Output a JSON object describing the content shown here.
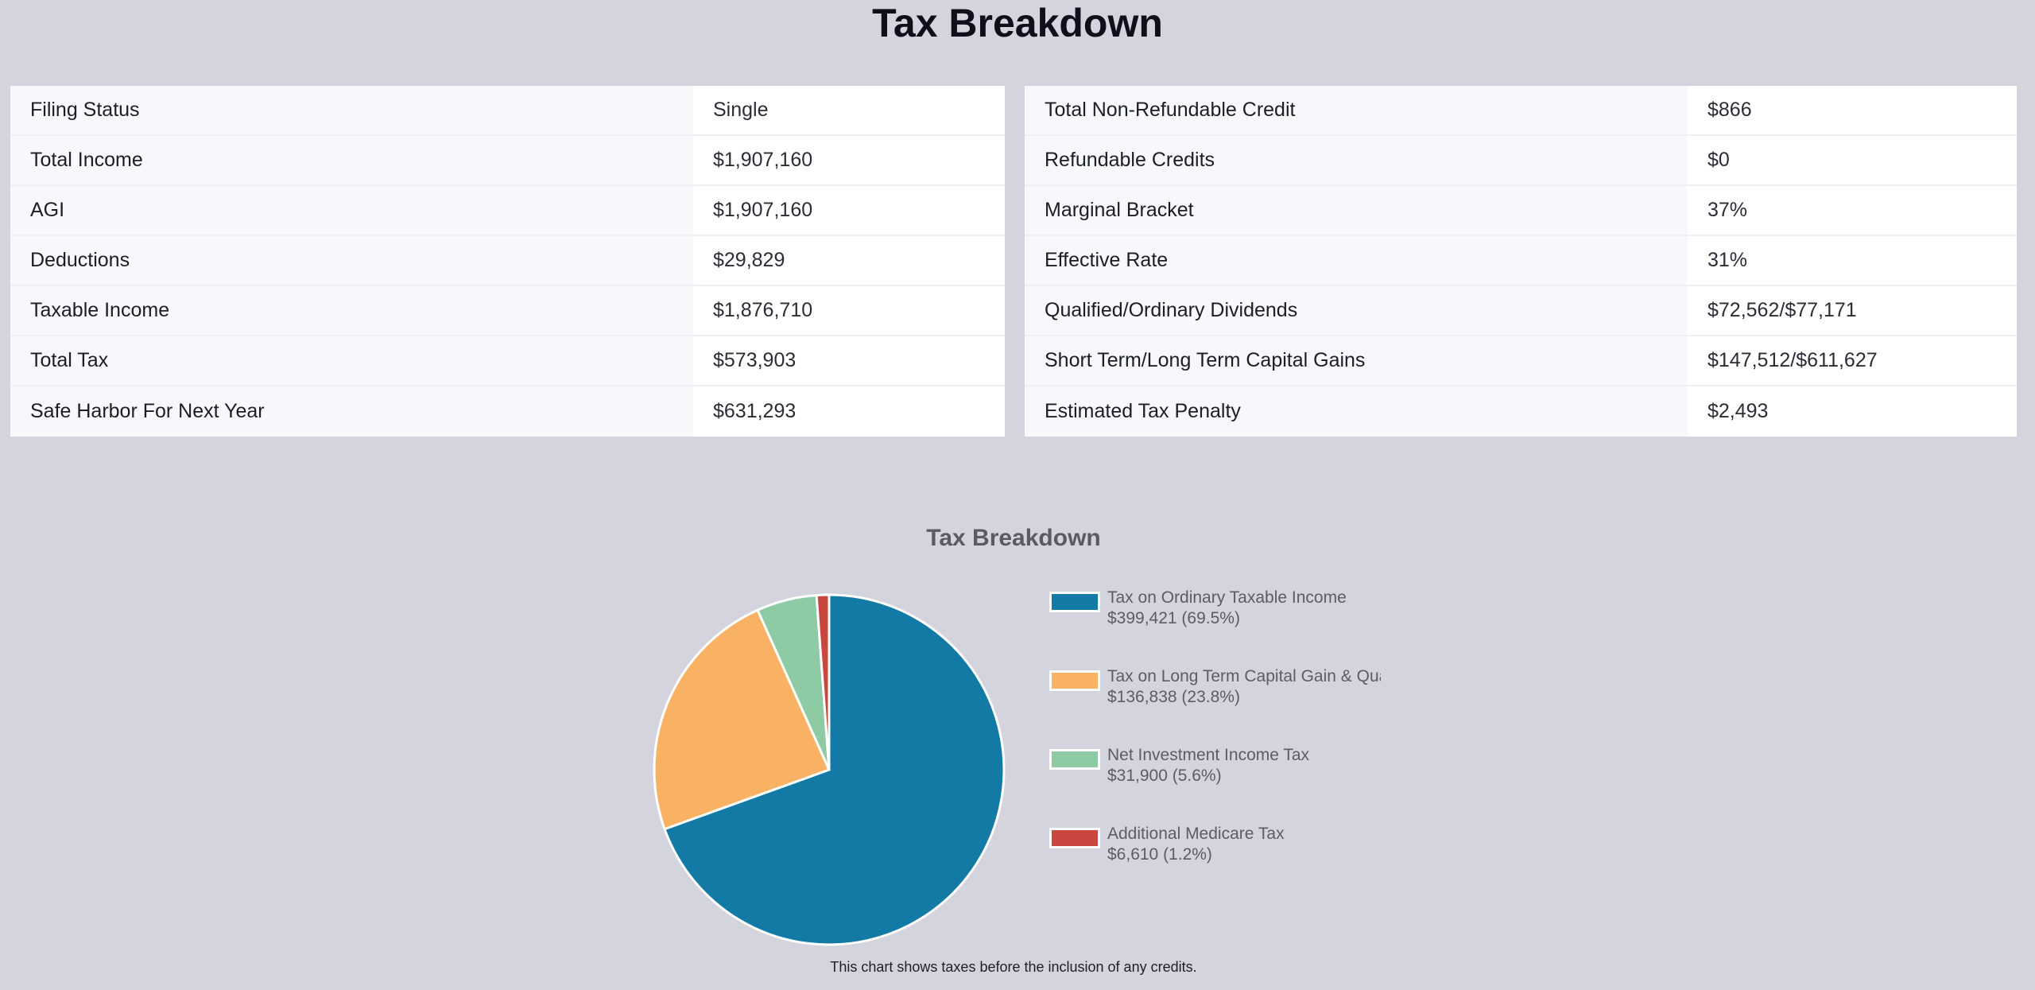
{
  "page_title": "Tax Breakdown",
  "left_table": [
    {
      "label": "Filing Status",
      "value": "Single"
    },
    {
      "label": "Total Income",
      "value": "$1,907,160"
    },
    {
      "label": "AGI",
      "value": "$1,907,160"
    },
    {
      "label": "Deductions",
      "value": "$29,829"
    },
    {
      "label": "Taxable Income",
      "value": "$1,876,710"
    },
    {
      "label": "Total Tax",
      "value": "$573,903"
    },
    {
      "label": "Safe Harbor For Next Year",
      "value": "$631,293"
    }
  ],
  "right_table": [
    {
      "label": "Total Non-Refundable Credit",
      "value": "$866"
    },
    {
      "label": "Refundable Credits",
      "value": "$0"
    },
    {
      "label": "Marginal Bracket",
      "value": "37%"
    },
    {
      "label": "Effective Rate",
      "value": "31%"
    },
    {
      "label": "Qualified/Ordinary Dividends",
      "value": "$72,562/$77,171"
    },
    {
      "label": "Short Term/Long Term Capital Gains",
      "value": "$147,512/$611,627"
    },
    {
      "label": "Estimated Tax Penalty",
      "value": "$2,493"
    }
  ],
  "chart_data": {
    "type": "pie",
    "title": "Tax Breakdown",
    "legend_position": "right",
    "slices": [
      {
        "label": "Tax on Ordinary Taxable Income",
        "value": 399421,
        "display": "$399,421 (69.5%)",
        "color": "#137aa6"
      },
      {
        "label": "Tax on Long Term Capital Gain & Qualified Dividends",
        "value": 136838,
        "display": "$136,838 (23.8%)",
        "color": "#f9b264"
      },
      {
        "label": "Net Investment Income Tax",
        "value": 31900,
        "display": "$31,900 (5.6%)",
        "color": "#8ecaa3"
      },
      {
        "label": "Additional Medicare Tax",
        "value": 6610,
        "display": "$6,610 (1.2%)",
        "color": "#c8473f"
      }
    ]
  },
  "footnote": "This chart shows taxes before the inclusion of any credits."
}
